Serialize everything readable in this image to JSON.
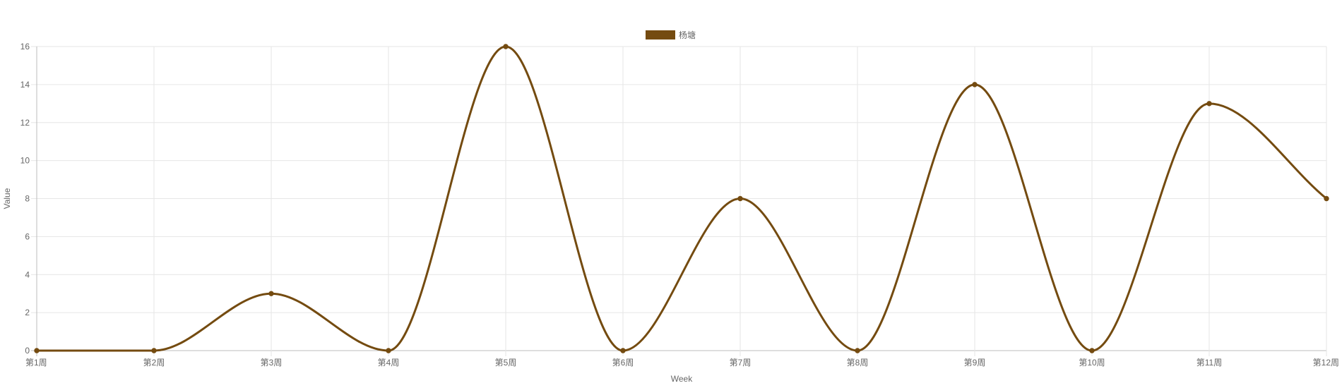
{
  "chart_data": {
    "type": "line",
    "categories": [
      "第1周",
      "第2周",
      "第3周",
      "第4周",
      "第5周",
      "第6周",
      "第7周",
      "第8周",
      "第9周",
      "第10周",
      "第11周",
      "第12周"
    ],
    "series": [
      {
        "name": "杨塘",
        "values": [
          0,
          0,
          3,
          0,
          16,
          0,
          8,
          0,
          14,
          0,
          13,
          8
        ],
        "color": "#744b10"
      }
    ],
    "xlabel": "Week",
    "ylabel": "Value",
    "ylim": [
      0,
      16
    ],
    "yticks": [
      0,
      2,
      4,
      6,
      8,
      10,
      12,
      14,
      16
    ],
    "grid": true,
    "legend_position": "top-center",
    "smooth": true
  }
}
